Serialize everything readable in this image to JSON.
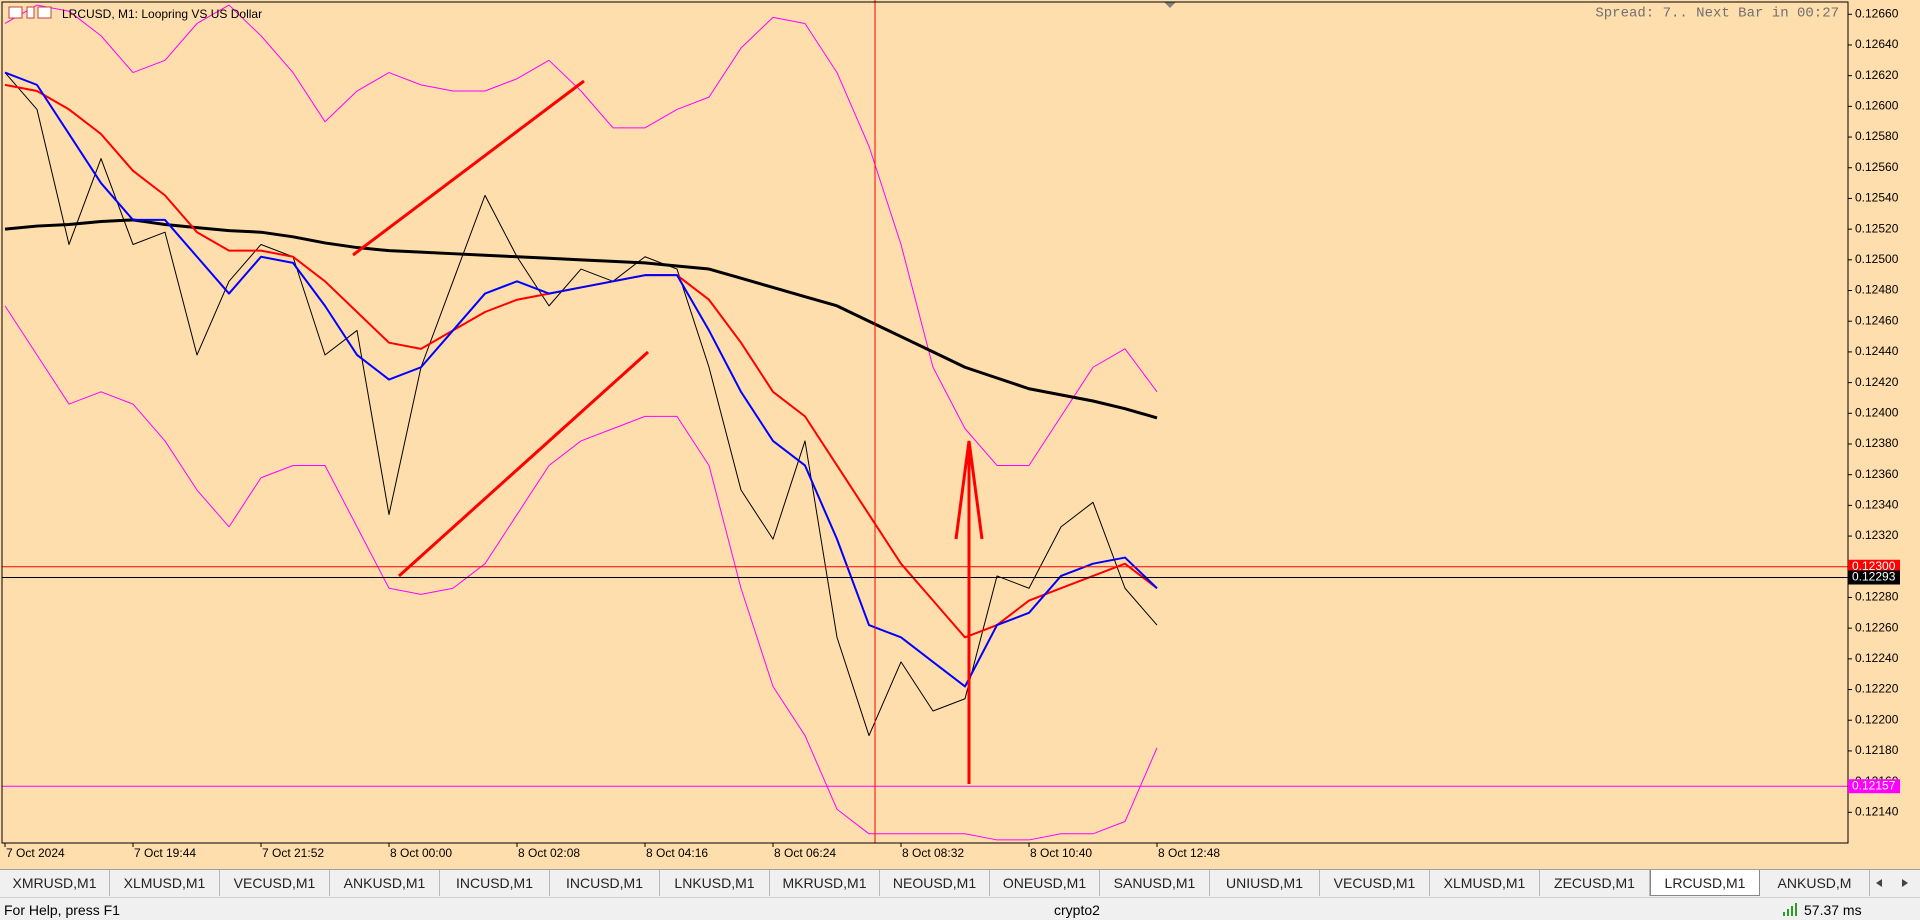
{
  "chart_data": {
    "type": "line",
    "title": "LRCUSD, M1:  Loopring VS US Dollar",
    "annotation": "Spread: 7.. Next Bar in 00:27",
    "background": "#ffdead",
    "categories": [
      "7 Oct 2024",
      null,
      null,
      null,
      "7 Oct 19:44",
      null,
      null,
      null,
      "7 Oct 21:52",
      null,
      null,
      null,
      "8 Oct 00:00",
      null,
      null,
      null,
      "8 Oct 02:08",
      null,
      null,
      null,
      "8 Oct 04:16",
      null,
      null,
      null,
      "8 Oct 06:24",
      null,
      null,
      null,
      "8 Oct 08:32",
      null,
      null,
      null,
      "8 Oct 10:40",
      null,
      null,
      null,
      "8 Oct 12:48"
    ],
    "ylim": [
      0.1212,
      0.12668
    ],
    "yticks": [
      {
        "value": 0.1214,
        "label": "0.12140"
      },
      {
        "value": 0.1216,
        "label": "0.12160"
      },
      {
        "value": 0.1218,
        "label": "0.12180"
      },
      {
        "value": 0.122,
        "label": "0.12200"
      },
      {
        "value": 0.1222,
        "label": "0.12220"
      },
      {
        "value": 0.1224,
        "label": "0.12240"
      },
      {
        "value": 0.1226,
        "label": "0.12260"
      },
      {
        "value": 0.1228,
        "label": "0.12280"
      },
      {
        "value": 0.123,
        "label": "0.12300"
      },
      {
        "value": 0.1232,
        "label": "0.12320"
      },
      {
        "value": 0.1234,
        "label": "0.12340"
      },
      {
        "value": 0.1236,
        "label": "0.12360"
      },
      {
        "value": 0.1238,
        "label": "0.12380"
      },
      {
        "value": 0.124,
        "label": "0.12400"
      },
      {
        "value": 0.1242,
        "label": "0.12420"
      },
      {
        "value": 0.1244,
        "label": "0.12440"
      },
      {
        "value": 0.1246,
        "label": "0.12460"
      },
      {
        "value": 0.1248,
        "label": "0.12480"
      },
      {
        "value": 0.125,
        "label": "0.12500"
      },
      {
        "value": 0.1252,
        "label": "0.12520"
      },
      {
        "value": 0.1254,
        "label": "0.12540"
      },
      {
        "value": 0.1256,
        "label": "0.12560"
      },
      {
        "value": 0.1258,
        "label": "0.12580"
      },
      {
        "value": 0.126,
        "label": "0.12600"
      },
      {
        "value": 0.1262,
        "label": "0.12620"
      },
      {
        "value": 0.1264,
        "label": "0.12640"
      },
      {
        "value": 0.1266,
        "label": "0.12660"
      }
    ],
    "series": [
      {
        "color": "#ff00ff",
        "line_width": 1,
        "values": [
          0.12654,
          0.12666,
          0.12662,
          0.12646,
          0.12622,
          0.1263,
          0.12654,
          0.12666,
          0.12646,
          0.12622,
          0.1259,
          0.1261,
          0.12622,
          0.12614,
          0.1261,
          0.1261,
          0.12618,
          0.1263,
          0.1261,
          0.12586,
          0.12586,
          0.12598,
          0.12606,
          0.12638,
          0.12658,
          0.12654,
          0.12622,
          0.12574,
          0.1251,
          0.1243,
          0.1239,
          0.12366,
          0.12366,
          0.12398,
          0.1243,
          0.12442,
          0.12414
        ]
      },
      {
        "color": "#ff00ff",
        "line_width": 1,
        "values": [
          0.1247,
          0.12438,
          0.12406,
          0.12414,
          0.12406,
          0.12382,
          0.1235,
          0.12326,
          0.12358,
          0.12366,
          0.12366,
          0.12326,
          0.12286,
          0.12282,
          0.12286,
          0.12302,
          0.12334,
          0.12366,
          0.12382,
          0.1239,
          0.12398,
          0.12398,
          0.12366,
          0.12286,
          0.12222,
          0.1219,
          0.12142,
          0.12126,
          0.12126,
          0.12126,
          0.12126,
          0.12122,
          0.12122,
          0.12126,
          0.12126,
          0.12134,
          0.12182
        ]
      },
      {
        "color": "#000000",
        "line_width": 1,
        "values": [
          0.12622,
          0.12598,
          0.1251,
          0.12566,
          0.1251,
          0.12518,
          0.12438,
          0.12486,
          0.1251,
          0.12502,
          0.12438,
          0.12454,
          0.12334,
          0.1243,
          0.12486,
          0.12542,
          0.12502,
          0.1247,
          0.12494,
          0.12486,
          0.12502,
          0.12494,
          0.1243,
          0.1235,
          0.12318,
          0.12382,
          0.12254,
          0.1219,
          0.12238,
          0.12206,
          0.12214,
          0.12294,
          0.12286,
          0.12326,
          0.12342,
          0.12286,
          0.12262
        ]
      },
      {
        "color": "#000000",
        "line_width": 3,
        "values": [
          0.1252,
          0.12522,
          0.12523,
          0.12525,
          0.12526,
          0.12523,
          0.12521,
          0.12519,
          0.12518,
          0.12515,
          0.12511,
          0.12508,
          0.12506,
          0.12505,
          0.12504,
          0.12503,
          0.12502,
          0.12501,
          0.125,
          0.12499,
          0.12498,
          0.12496,
          0.12494,
          0.12488,
          0.12482,
          0.12476,
          0.1247,
          0.1246,
          0.1245,
          0.1244,
          0.1243,
          0.12423,
          0.12416,
          0.12412,
          0.12408,
          0.12403,
          0.12397
        ]
      },
      {
        "color": "#ff0000",
        "line_width": 2,
        "values": [
          0.12614,
          0.1261,
          0.12598,
          0.12582,
          0.12558,
          0.12542,
          0.12518,
          0.12506,
          0.12506,
          0.12502,
          0.12486,
          0.12466,
          0.12446,
          0.12442,
          0.12454,
          0.12466,
          0.12474,
          0.12478,
          0.12482,
          0.12486,
          0.1249,
          0.1249,
          0.12474,
          0.12446,
          0.12414,
          0.12398,
          0.12366,
          0.12334,
          0.12302,
          0.12278,
          0.12254,
          0.12262,
          0.12278,
          0.12286,
          0.12294,
          0.12302,
          0.12286
        ]
      },
      {
        "color": "#0000ff",
        "line_width": 2,
        "values": [
          0.12622,
          0.12614,
          0.12582,
          0.1255,
          0.12526,
          0.12526,
          0.12502,
          0.12478,
          0.12502,
          0.12498,
          0.1247,
          0.12438,
          0.12422,
          0.1243,
          0.12454,
          0.12478,
          0.12486,
          0.12478,
          0.12482,
          0.12486,
          0.1249,
          0.1249,
          0.12454,
          0.12414,
          0.12382,
          0.12366,
          0.12318,
          0.12262,
          0.12254,
          0.12238,
          0.12222,
          0.12262,
          0.1227,
          0.12294,
          0.12302,
          0.12306,
          0.12286
        ]
      }
    ],
    "price_lines": [
      {
        "value": 0.123,
        "label": "0.12300",
        "color": "#ff0000",
        "text_color": "#ffffff"
      },
      {
        "value": 0.12293,
        "label": "0.12293",
        "color": "#000000",
        "text_color": "#ffffff"
      },
      {
        "value": 0.12157,
        "label": "0.12157",
        "color": "#ff00ff",
        "text_color": "#ffffff"
      }
    ]
  },
  "tabs": [
    "XMRUSD,M1",
    "XLMUSD,M1",
    "VECUSD,M1",
    "ANKUSD,M1",
    "INCUSD,M1",
    "INCUSD,M1",
    "LNKUSD,M1",
    "MKRUSD,M1",
    "NEOUSD,M1",
    "ONEUSD,M1",
    "SANUSD,M1",
    "UNIUSD,M1",
    "VECUSD,M1",
    "XLMUSD,M1",
    "ZECUSD,M1",
    "LRCUSD,M1",
    "ANKUSD,M"
  ],
  "active_tab": 15,
  "status": {
    "help": "For Help, press F1",
    "profile": "crypto2",
    "ping": "57.37 ms"
  }
}
